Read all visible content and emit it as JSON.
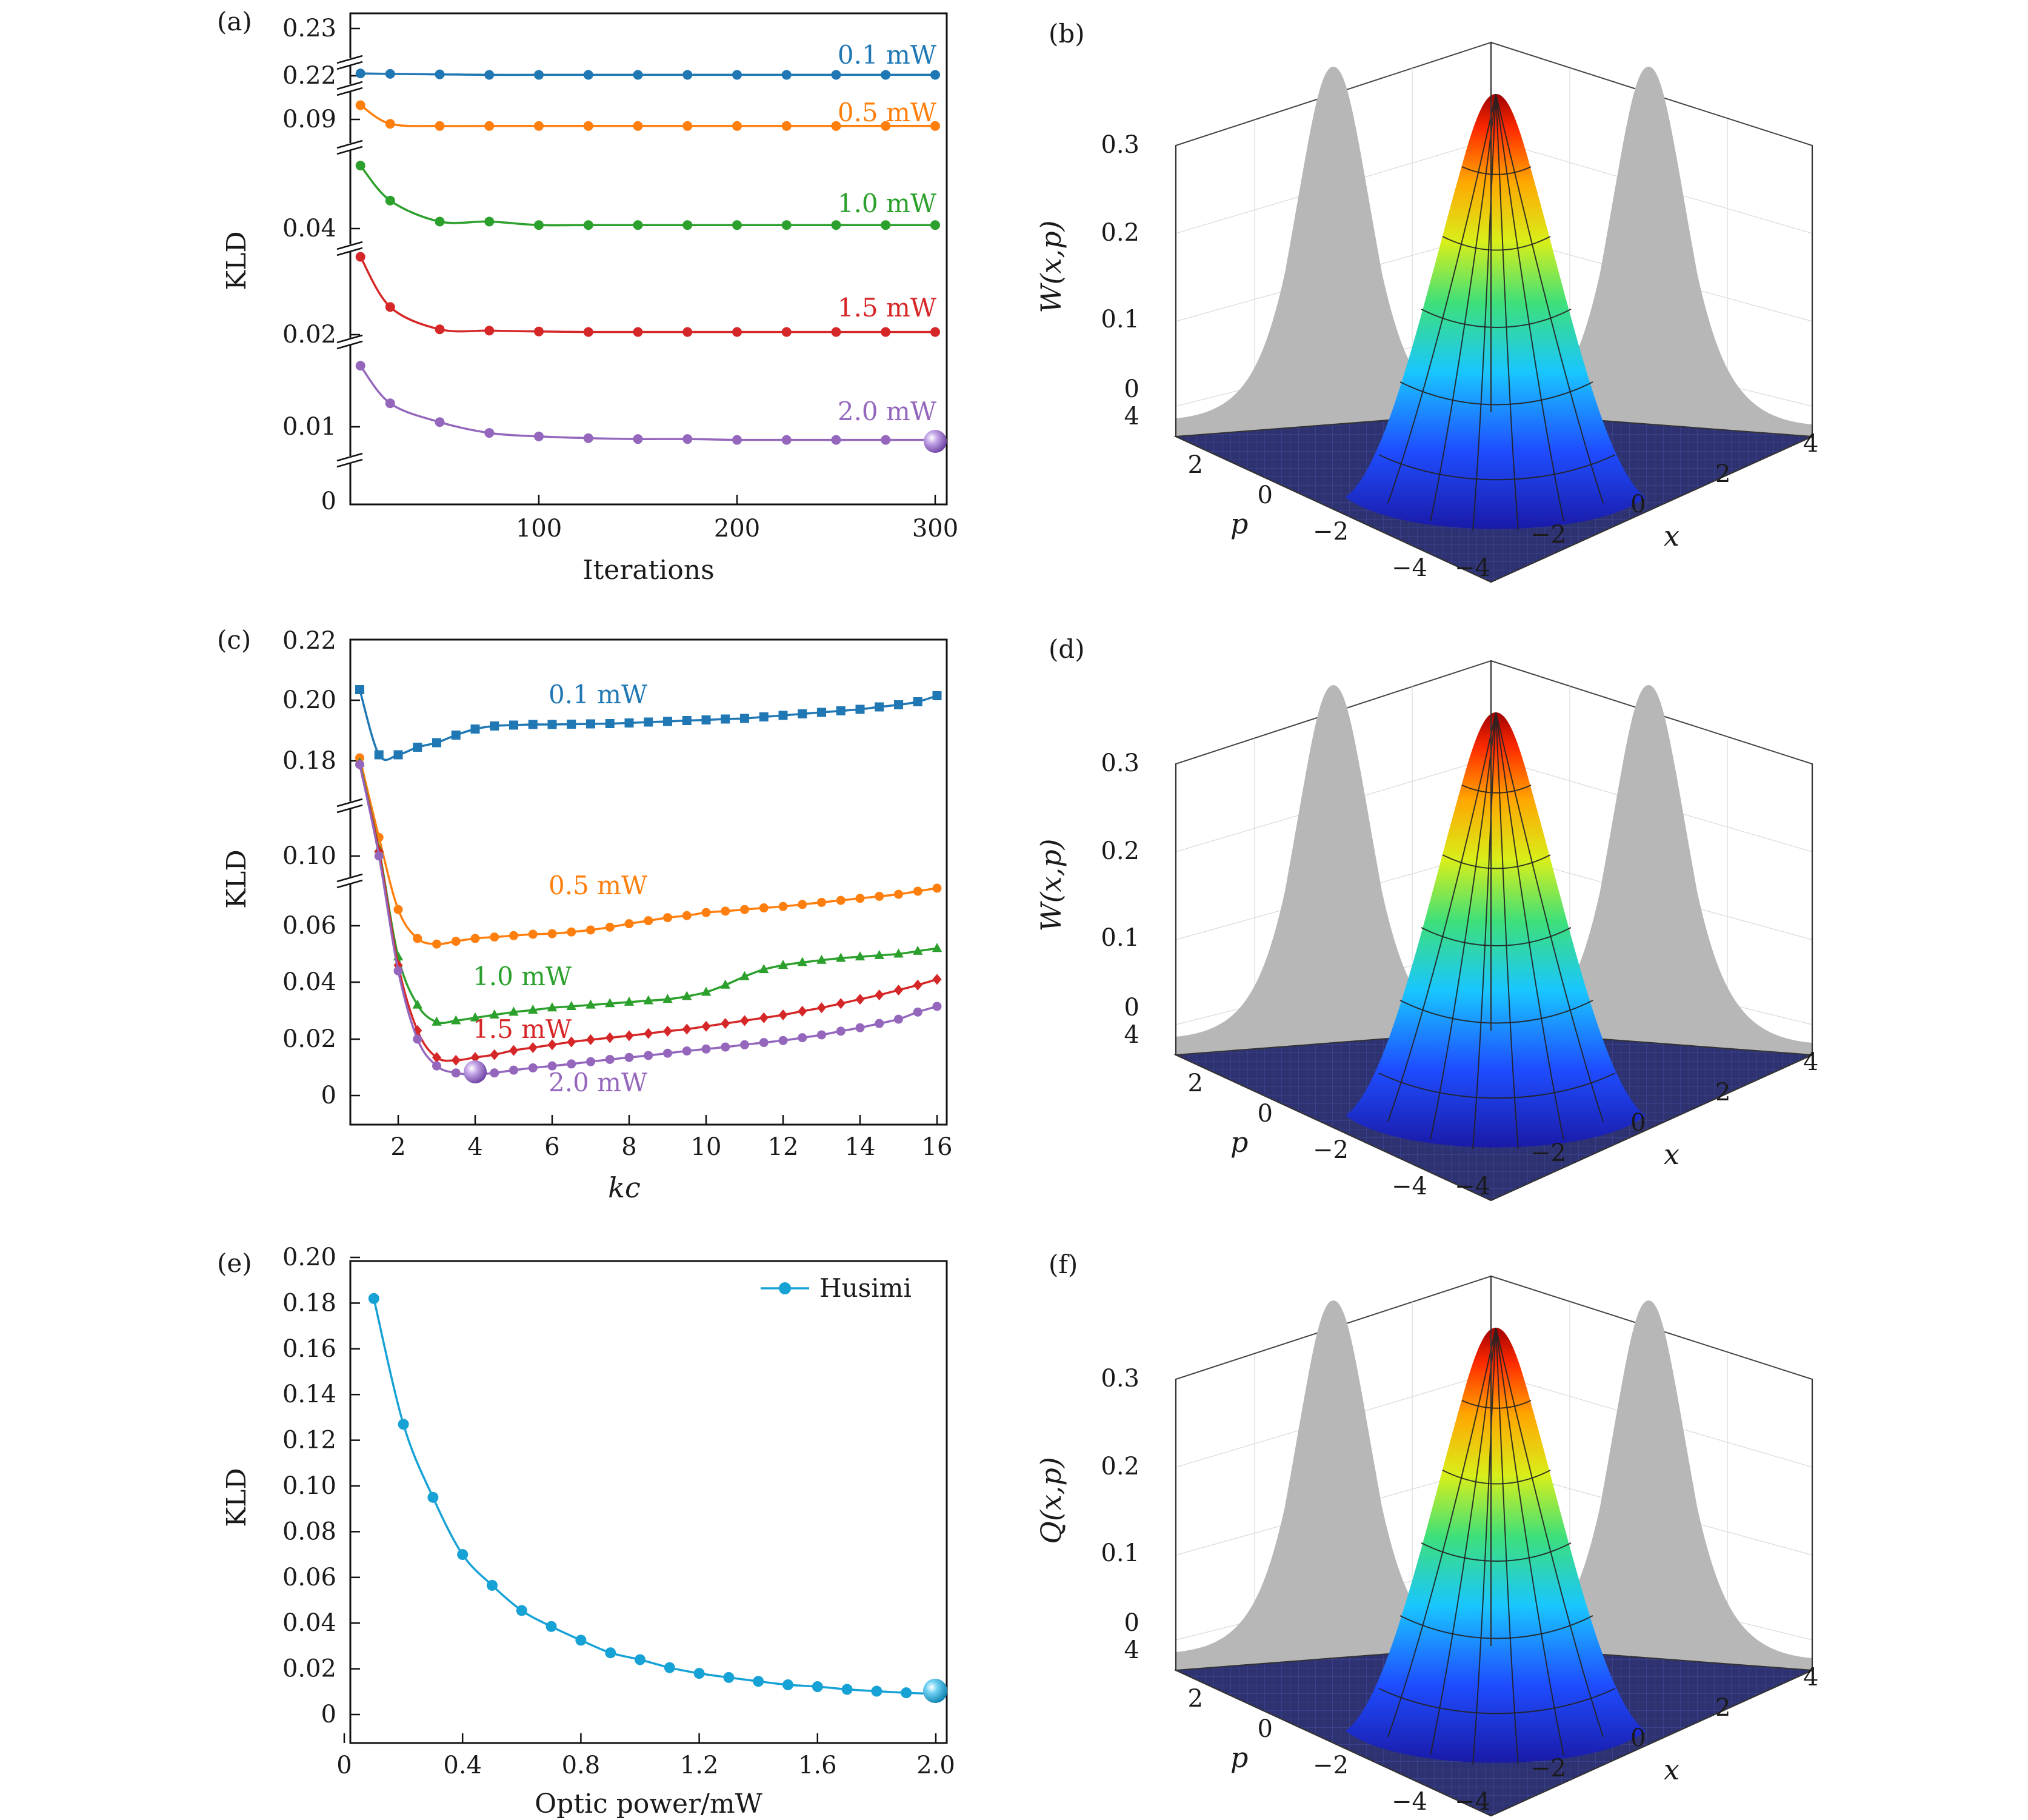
{
  "chart_data": [
    {
      "panel": "(a)",
      "type": "line",
      "xlabel": "Iterations",
      "ylabel": "KLD",
      "xticks": [
        "100",
        "200",
        "300"
      ],
      "yticks": [
        "0",
        "0.01",
        "0.02",
        "0.04",
        "0.09",
        "0.22",
        "0.23"
      ],
      "broken_y_axis": true,
      "x": [
        10,
        25,
        50,
        75,
        100,
        125,
        150,
        175,
        200,
        225,
        250,
        275,
        300
      ],
      "series": [
        {
          "name": "0.1 mW",
          "color": "#1f77b4",
          "values": [
            0.2205,
            0.2204,
            0.2203,
            0.2202,
            0.2202,
            0.2202,
            0.2202,
            0.2202,
            0.2202,
            0.2202,
            0.2202,
            0.2202,
            0.2202
          ]
        },
        {
          "name": "0.5 mW",
          "color": "#ff7f0e",
          "values": [
            0.095,
            0.088,
            0.087,
            0.087,
            0.087,
            0.087,
            0.087,
            0.087,
            0.087,
            0.087,
            0.087,
            0.087,
            0.087
          ]
        },
        {
          "name": "1.0 mW",
          "color": "#2ca02c",
          "values": [
            0.058,
            0.048,
            0.042,
            0.042,
            0.041,
            0.041,
            0.041,
            0.041,
            0.041,
            0.041,
            0.041,
            0.041,
            0.041
          ]
        },
        {
          "name": "1.5 mW",
          "color": "#d62728",
          "values": [
            0.034,
            0.027,
            0.022,
            0.0215,
            0.0212,
            0.021,
            0.021,
            0.021,
            0.021,
            0.021,
            0.021,
            0.021,
            0.021
          ]
        },
        {
          "name": "2.0 mW",
          "color": "#9467bd",
          "values": [
            0.0165,
            0.0125,
            0.0105,
            0.0093,
            0.0089,
            0.0087,
            0.0086,
            0.0086,
            0.0085,
            0.0085,
            0.0085,
            0.0085,
            0.0085
          ]
        }
      ]
    },
    {
      "panel": "(c)",
      "type": "line",
      "xlabel": "kc",
      "ylabel": "KLD",
      "xticks": [
        "2",
        "4",
        "6",
        "8",
        "10",
        "12",
        "14",
        "16"
      ],
      "yticks": [
        "0",
        "0.02",
        "0.04",
        "0.06",
        "0.10",
        "0.18",
        "0.20",
        "0.22"
      ],
      "broken_y_axis": true,
      "series": [
        {
          "name": "0.1 mW",
          "color": "#1f77b4",
          "marker": "square",
          "x": [
            1,
            1.5,
            2,
            2.5,
            3,
            3.5,
            4,
            4.5,
            5,
            5.5,
            6,
            6.5,
            7,
            7.5,
            8,
            8.5,
            9,
            9.5,
            10,
            10.5,
            11,
            11.5,
            12,
            12.5,
            13,
            13.5,
            14,
            14.5,
            15,
            15.5,
            16
          ],
          "values": [
            0.2035,
            0.182,
            0.182,
            0.1845,
            0.186,
            0.1885,
            0.1905,
            0.1915,
            0.1918,
            0.192,
            0.192,
            0.1921,
            0.1922,
            0.1923,
            0.1925,
            0.1928,
            0.193,
            0.1933,
            0.1935,
            0.1938,
            0.194,
            0.1945,
            0.195,
            0.1955,
            0.196,
            0.1965,
            0.197,
            0.1978,
            0.1985,
            0.1995,
            0.2015
          ]
        },
        {
          "name": "0.5 mW",
          "color": "#ff7f0e",
          "marker": "circle",
          "x": [
            1,
            1.5,
            2,
            2.5,
            3,
            3.5,
            4,
            4.5,
            5,
            5.5,
            6,
            6.5,
            7,
            7.5,
            8,
            8.5,
            9,
            9.5,
            10,
            10.5,
            11,
            11.5,
            12,
            12.5,
            13,
            13.5,
            14,
            14.5,
            15,
            15.5,
            16
          ],
          "values": [
            0.181,
            0.116,
            0.068,
            0.0555,
            0.0535,
            0.0545,
            0.0555,
            0.056,
            0.0565,
            0.057,
            0.0572,
            0.0578,
            0.0585,
            0.0595,
            0.061,
            0.0625,
            0.064,
            0.065,
            0.0665,
            0.0672,
            0.068,
            0.0688,
            0.0695,
            0.0705,
            0.0715,
            0.0725,
            0.0735,
            0.0745,
            0.0755,
            0.077,
            0.0785
          ]
        },
        {
          "name": "1.0 mW",
          "color": "#2ca02c",
          "marker": "triangle",
          "x": [
            1,
            1.5,
            2,
            2.5,
            3,
            3.5,
            4,
            4.5,
            5,
            5.5,
            6,
            6.5,
            7,
            7.5,
            8,
            8.5,
            9,
            9.5,
            10,
            10.5,
            11,
            11.5,
            12,
            12.5,
            13,
            13.5,
            14,
            14.5,
            15,
            15.5,
            16
          ],
          "values": [
            0.179,
            0.106,
            0.049,
            0.032,
            0.026,
            0.0265,
            0.0275,
            0.0285,
            0.0295,
            0.0302,
            0.031,
            0.0315,
            0.032,
            0.0325,
            0.033,
            0.0335,
            0.034,
            0.035,
            0.0365,
            0.039,
            0.042,
            0.0445,
            0.046,
            0.047,
            0.0478,
            0.0485,
            0.049,
            0.0495,
            0.05,
            0.051,
            0.052
          ]
        },
        {
          "name": "1.5 mW",
          "color": "#d62728",
          "marker": "diamond",
          "x": [
            1,
            1.5,
            2,
            2.5,
            3,
            3.5,
            4,
            4.5,
            5,
            5.5,
            6,
            6.5,
            7,
            7.5,
            8,
            8.5,
            9,
            9.5,
            10,
            10.5,
            11,
            11.5,
            12,
            12.5,
            13,
            13.5,
            14,
            14.5,
            15,
            15.5,
            16
          ],
          "values": [
            0.178,
            0.104,
            0.046,
            0.023,
            0.0135,
            0.0125,
            0.0135,
            0.0145,
            0.016,
            0.017,
            0.018,
            0.019,
            0.0198,
            0.0205,
            0.0212,
            0.022,
            0.0228,
            0.0235,
            0.0245,
            0.0255,
            0.0265,
            0.0275,
            0.0285,
            0.0298,
            0.031,
            0.0325,
            0.034,
            0.0355,
            0.0372,
            0.039,
            0.041
          ]
        },
        {
          "name": "2.0 mW",
          "color": "#9467bd",
          "marker": "circle",
          "x": [
            1,
            1.5,
            2,
            2.5,
            3,
            3.5,
            4,
            4.5,
            5,
            5.5,
            6,
            6.5,
            7,
            7.5,
            8,
            8.5,
            9,
            9.5,
            10,
            10.5,
            11,
            11.5,
            12,
            12.5,
            13,
            13.5,
            14,
            14.5,
            15,
            15.5,
            16
          ],
          "values": [
            0.178,
            0.1,
            0.044,
            0.02,
            0.0105,
            0.008,
            0.0075,
            0.008,
            0.009,
            0.0098,
            0.0105,
            0.0112,
            0.012,
            0.0128,
            0.0135,
            0.0142,
            0.015,
            0.0158,
            0.0165,
            0.0172,
            0.018,
            0.0188,
            0.0195,
            0.0205,
            0.0215,
            0.0228,
            0.024,
            0.0255,
            0.027,
            0.0295,
            0.0315
          ]
        }
      ]
    },
    {
      "panel": "(e)",
      "type": "line",
      "xlabel": "Optic power/mW",
      "ylabel": "KLD",
      "xticks": [
        "0",
        "0.4",
        "0.8",
        "1.2",
        "1.6",
        "2.0"
      ],
      "yticks": [
        "0",
        "0.02",
        "0.04",
        "0.06",
        "0.08",
        "0.10",
        "0.12",
        "0.14",
        "0.16",
        "0.18",
        "0.20"
      ],
      "ylim": [
        -0.005,
        0.2
      ],
      "legend": "Husimi",
      "legend_position": "top-right",
      "series": [
        {
          "name": "Husimi",
          "color": "#17a2d6",
          "x": [
            0.1,
            0.2,
            0.3,
            0.4,
            0.5,
            0.6,
            0.7,
            0.8,
            0.9,
            1.0,
            1.1,
            1.2,
            1.3,
            1.4,
            1.5,
            1.6,
            1.7,
            1.8,
            1.9,
            2.0
          ],
          "values": [
            0.182,
            0.127,
            0.095,
            0.07,
            0.0565,
            0.0455,
            0.0385,
            0.0325,
            0.027,
            0.024,
            0.0205,
            0.018,
            0.0162,
            0.0145,
            0.013,
            0.0122,
            0.011,
            0.0102,
            0.0095,
            0.009
          ]
        }
      ]
    },
    {
      "panel": "(b)",
      "type": "surface3d",
      "zlabel": "W(x,p)",
      "xlabel": "x",
      "ylabel": "p",
      "zticks": [
        "0",
        "0.1",
        "0.2",
        "0.3"
      ],
      "xticks": [
        "−4",
        "−2",
        "0",
        "2",
        "4"
      ],
      "yticks": [
        "−4",
        "−2",
        "0",
        "2",
        "4"
      ]
    },
    {
      "panel": "(d)",
      "type": "surface3d",
      "zlabel": "W(x,p)",
      "xlabel": "x",
      "ylabel": "p",
      "zticks": [
        "0",
        "0.1",
        "0.2",
        "0.3"
      ],
      "xticks": [
        "−4",
        "−2",
        "0",
        "2",
        "4"
      ],
      "yticks": [
        "−4",
        "−2",
        "0",
        "2",
        "4"
      ]
    },
    {
      "panel": "(f)",
      "type": "surface3d",
      "zlabel": "Q(x,p)",
      "xlabel": "x",
      "ylabel": "p",
      "zticks": [
        "0",
        "0.1",
        "0.2",
        "0.3"
      ],
      "xticks": [
        "−4",
        "−2",
        "0",
        "2",
        "4"
      ],
      "yticks": [
        "−4",
        "−2",
        "0",
        "2",
        "4"
      ]
    }
  ]
}
